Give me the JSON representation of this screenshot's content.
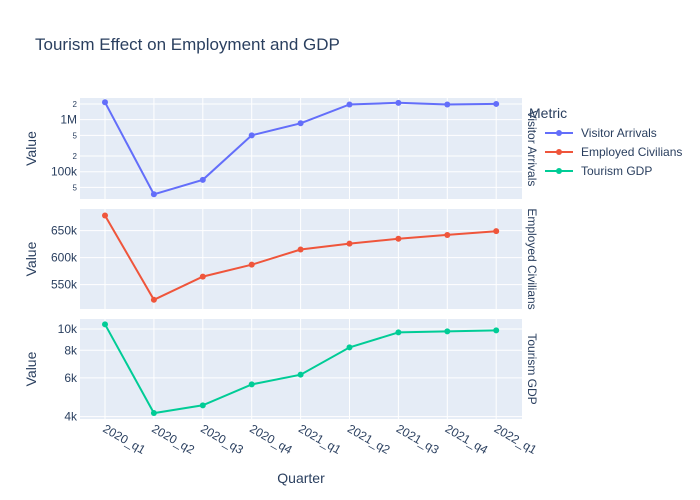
{
  "chart_data": {
    "type": "line",
    "title": "Tourism Effect on Employment and GDP",
    "xlabel": "Quarter",
    "ylabel": "Value",
    "legend_title": "Metric",
    "legend_position": "top-right",
    "grid": true,
    "categories": [
      "2020_q1",
      "2020_q2",
      "2020_q3",
      "2020_q4",
      "2021_q1",
      "2021_q2",
      "2021_q3",
      "2021_q4",
      "2022_q1"
    ],
    "series": [
      {
        "name": "Visitor Arrivals",
        "color": "#636efa",
        "scale": "log",
        "ylim": [
          30000,
          2600000
        ],
        "ticks": [
          {
            "v": 50000,
            "label": "5",
            "minor": true
          },
          {
            "v": 100000,
            "label": "100k"
          },
          {
            "v": 200000,
            "label": "2",
            "minor": true
          },
          {
            "v": 500000,
            "label": "5",
            "minor": true
          },
          {
            "v": 1000000,
            "label": "1M"
          },
          {
            "v": 2000000,
            "label": "2",
            "minor": true
          }
        ],
        "values": [
          2150000,
          37000,
          70000,
          500000,
          850000,
          1950000,
          2100000,
          1950000,
          2000000
        ]
      },
      {
        "name": "Employed Civilians",
        "color": "#ef553b",
        "scale": "linear",
        "ylim": [
          505000,
          690000
        ],
        "ticks": [
          {
            "v": 550000,
            "label": "550k"
          },
          {
            "v": 600000,
            "label": "600k"
          },
          {
            "v": 650000,
            "label": "650k"
          }
        ],
        "values": [
          678000,
          522000,
          565000,
          587000,
          615000,
          626000,
          635000,
          642000,
          649000
        ]
      },
      {
        "name": "Tourism GDP",
        "color": "#00cc96",
        "scale": "log",
        "ylim": [
          3900,
          11100
        ],
        "ticks": [
          {
            "v": 4000,
            "label": "4k"
          },
          {
            "v": 6000,
            "label": "6k"
          },
          {
            "v": 8000,
            "label": "8k"
          },
          {
            "v": 10000,
            "label": "10k"
          }
        ],
        "values": [
          10500,
          4150,
          4500,
          5600,
          6200,
          8250,
          9650,
          9750,
          9850
        ]
      }
    ]
  }
}
